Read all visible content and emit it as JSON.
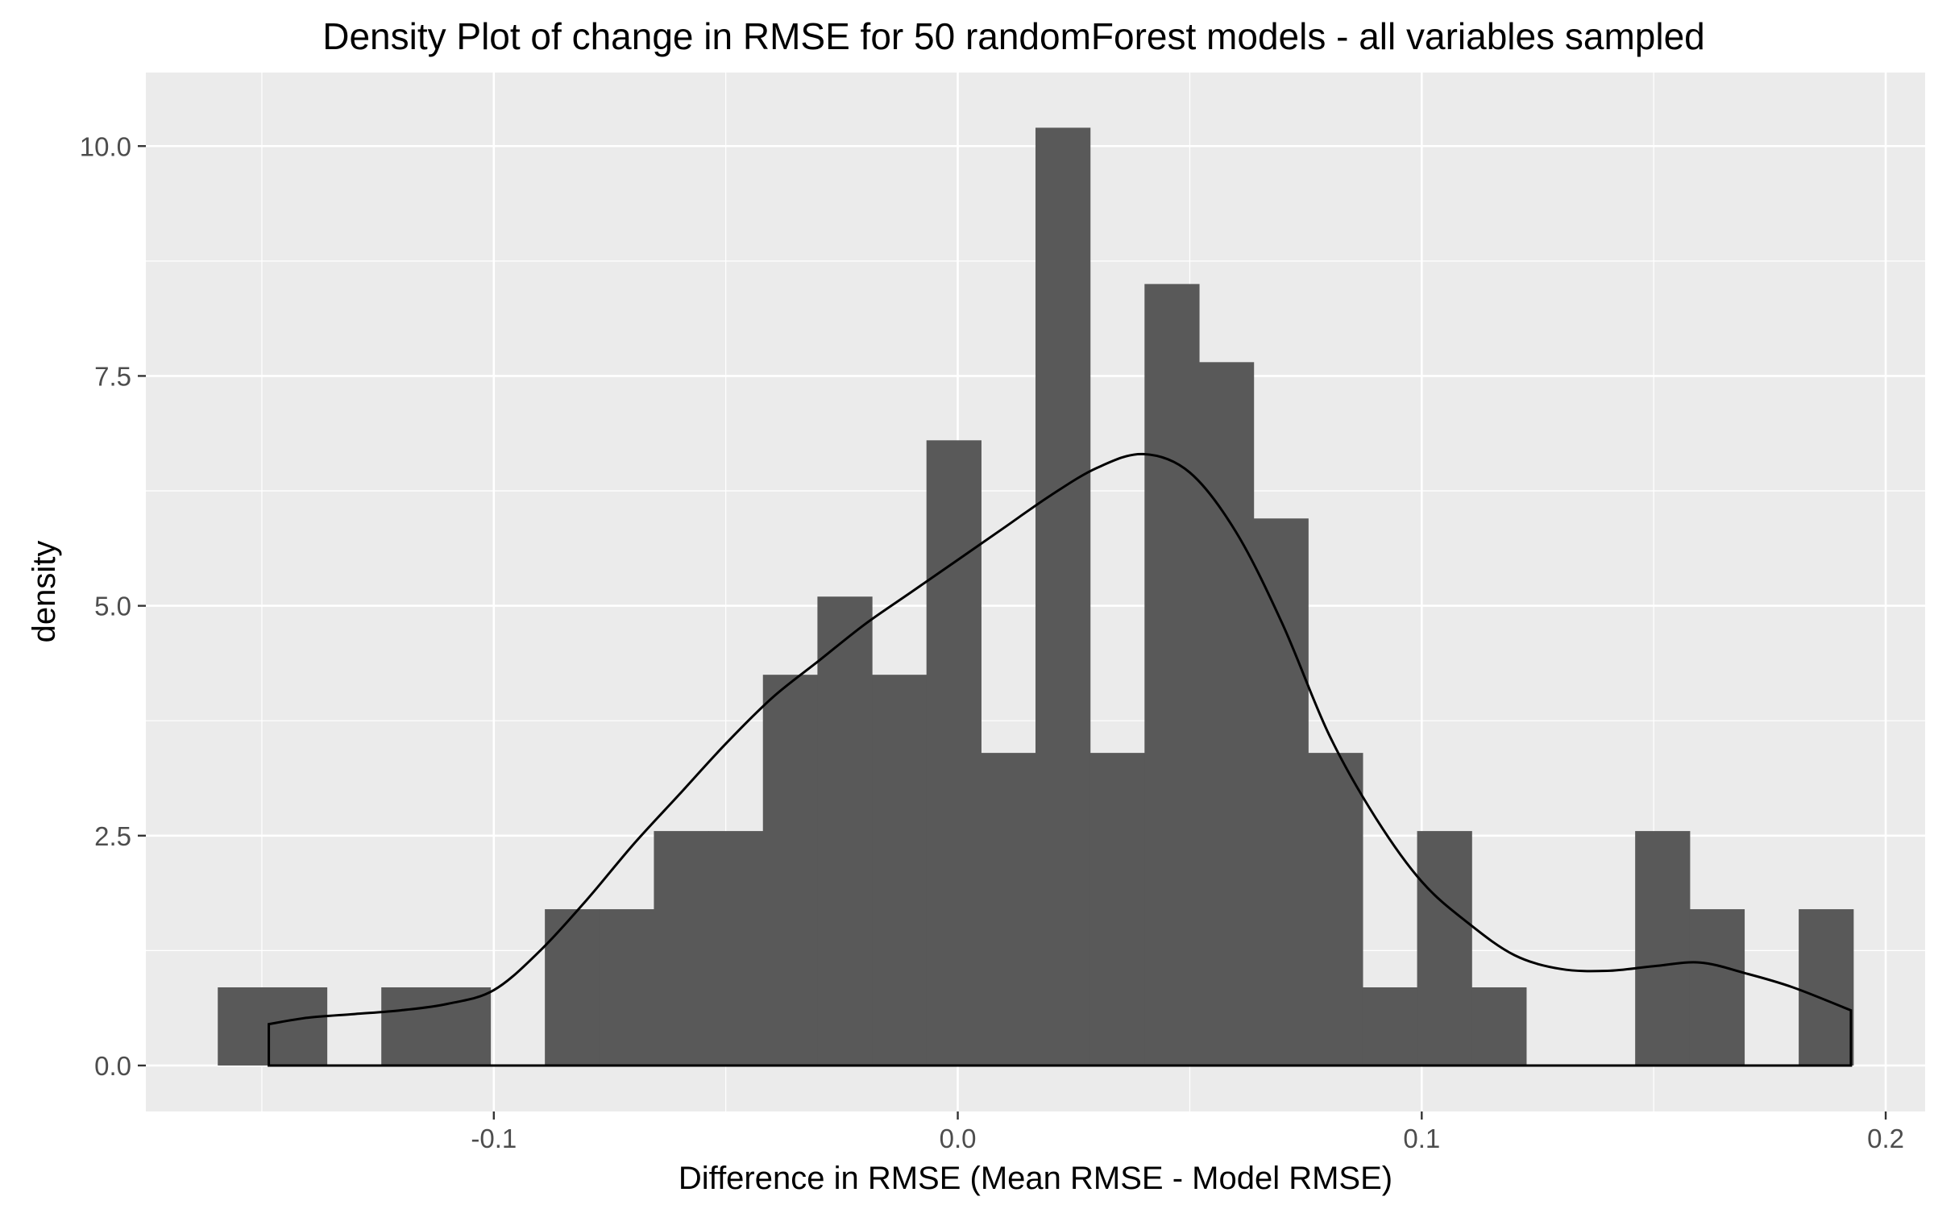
{
  "chart_data": {
    "type": "bar",
    "title": "Density Plot of change in RMSE for 50 randomForest models - all variables sampled",
    "xlabel": "Difference in RMSE (Mean RMSE - Model RMSE)",
    "ylabel": "density",
    "xlim": [
      -0.175,
      0.2085
    ],
    "ylim": [
      -0.5,
      10.8
    ],
    "x_ticks": [
      -0.1,
      0.0,
      0.1,
      0.2
    ],
    "x_tick_labels": [
      "-0.1",
      "0.0",
      "0.1",
      "0.2"
    ],
    "y_ticks": [
      0.0,
      2.5,
      5.0,
      7.5,
      10.0
    ],
    "y_tick_labels": [
      "0.0",
      "2.5",
      "5.0",
      "7.5",
      "10.0"
    ],
    "grid": true,
    "histogram": {
      "bin_width": 0.01175,
      "bins_start": -0.1595,
      "densities": [
        0.85,
        0.85,
        0,
        0.85,
        0.85,
        0,
        1.7,
        1.7,
        2.55,
        2.55,
        4.25,
        5.1,
        4.25,
        6.8,
        3.4,
        10.2,
        3.4,
        8.5,
        7.65,
        5.95,
        3.4,
        0.85,
        2.55,
        0.85,
        0,
        0,
        2.55,
        1.7,
        0,
        1.7
      ],
      "fill_color": "#595959"
    },
    "density_curve": {
      "x": [
        -0.1485,
        -0.14,
        -0.13,
        -0.12,
        -0.11,
        -0.1,
        -0.09,
        -0.08,
        -0.07,
        -0.06,
        -0.05,
        -0.04,
        -0.03,
        -0.02,
        -0.01,
        0.0,
        0.01,
        0.02,
        0.03,
        0.04,
        0.05,
        0.06,
        0.07,
        0.08,
        0.09,
        0.1,
        0.11,
        0.12,
        0.13,
        0.14,
        0.15,
        0.16,
        0.17,
        0.18,
        0.1925
      ],
      "y": [
        0.45,
        0.52,
        0.56,
        0.6,
        0.67,
        0.82,
        1.25,
        1.8,
        2.4,
        2.95,
        3.5,
        4.0,
        4.4,
        4.8,
        5.15,
        5.5,
        5.85,
        6.2,
        6.5,
        6.65,
        6.45,
        5.8,
        4.8,
        3.6,
        2.7,
        2.0,
        1.55,
        1.2,
        1.05,
        1.03,
        1.08,
        1.12,
        1.0,
        0.85,
        0.6
      ],
      "line_color": "#000000"
    },
    "colors": {
      "panel_background": "#ebebeb",
      "grid_major": "#ffffff",
      "tick_text": "#4d4d4d",
      "title_text": "#000000"
    }
  }
}
